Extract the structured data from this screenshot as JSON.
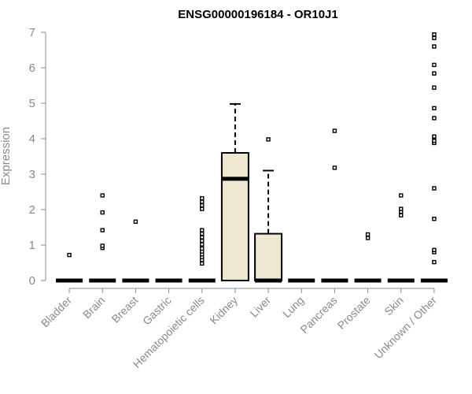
{
  "chart_data": {
    "type": "box",
    "title": "ENSG00000196184 - OR10J1",
    "ylabel": "Expression",
    "xlabel": "",
    "ylim": [
      0,
      7
    ],
    "yticks": [
      0,
      1,
      2,
      3,
      4,
      5,
      6,
      7
    ],
    "grid": false,
    "box_fill": "#efe8d0",
    "categories": [
      "Bladder",
      "Brain",
      "Breast",
      "Gastric",
      "Hematopoietic cells",
      "Kidney",
      "Liver",
      "Lung",
      "Pancreas",
      "Prostate",
      "Skin",
      "Unknown / Other"
    ],
    "boxes": [
      {
        "q1": 0,
        "median": 0,
        "q3": 0,
        "whisker_low": 0,
        "whisker_high": 0,
        "outliers": [
          0.72
        ]
      },
      {
        "q1": 0,
        "median": 0,
        "q3": 0,
        "whisker_low": 0,
        "whisker_high": 0,
        "outliers": [
          0.92,
          0.98,
          1.42,
          1.92,
          2.4
        ]
      },
      {
        "q1": 0,
        "median": 0,
        "q3": 0,
        "whisker_low": 0,
        "whisker_high": 0,
        "outliers": [
          1.66
        ]
      },
      {
        "q1": 0,
        "median": 0,
        "q3": 0,
        "whisker_low": 0,
        "whisker_high": 0,
        "outliers": []
      },
      {
        "q1": 0,
        "median": 0,
        "q3": 0,
        "whisker_low": 0,
        "whisker_high": 0,
        "outliers": [
          0.48,
          0.58,
          0.66,
          0.74,
          0.82,
          0.9,
          1.02,
          1.12,
          1.22,
          1.32,
          1.42,
          2.02,
          2.12,
          2.22,
          2.32
        ]
      },
      {
        "q1": 0,
        "median": 2.87,
        "q3": 3.6,
        "whisker_low": 0,
        "whisker_high": 4.98,
        "outliers": []
      },
      {
        "q1": 0,
        "median": 0,
        "q3": 1.32,
        "whisker_low": 0,
        "whisker_high": 3.1,
        "outliers": [
          3.98
        ]
      },
      {
        "q1": 0,
        "median": 0,
        "q3": 0,
        "whisker_low": 0,
        "whisker_high": 0,
        "outliers": []
      },
      {
        "q1": 0,
        "median": 0,
        "q3": 0,
        "whisker_low": 0,
        "whisker_high": 0,
        "outliers": [
          3.18,
          4.22
        ]
      },
      {
        "q1": 0,
        "median": 0,
        "q3": 0,
        "whisker_low": 0,
        "whisker_high": 0,
        "outliers": [
          1.2,
          1.3
        ]
      },
      {
        "q1": 0,
        "median": 0,
        "q3": 0,
        "whisker_low": 0,
        "whisker_high": 0,
        "outliers": [
          1.84,
          1.94,
          2.02,
          2.4
        ]
      },
      {
        "q1": 0,
        "median": 0,
        "q3": 0,
        "whisker_low": 0,
        "whisker_high": 0,
        "outliers": [
          0.52,
          0.8,
          0.86,
          1.74,
          2.6,
          3.88,
          3.94,
          4.06,
          4.58,
          4.86,
          5.44,
          5.84,
          6.08,
          6.6,
          6.84,
          6.94
        ]
      }
    ]
  }
}
